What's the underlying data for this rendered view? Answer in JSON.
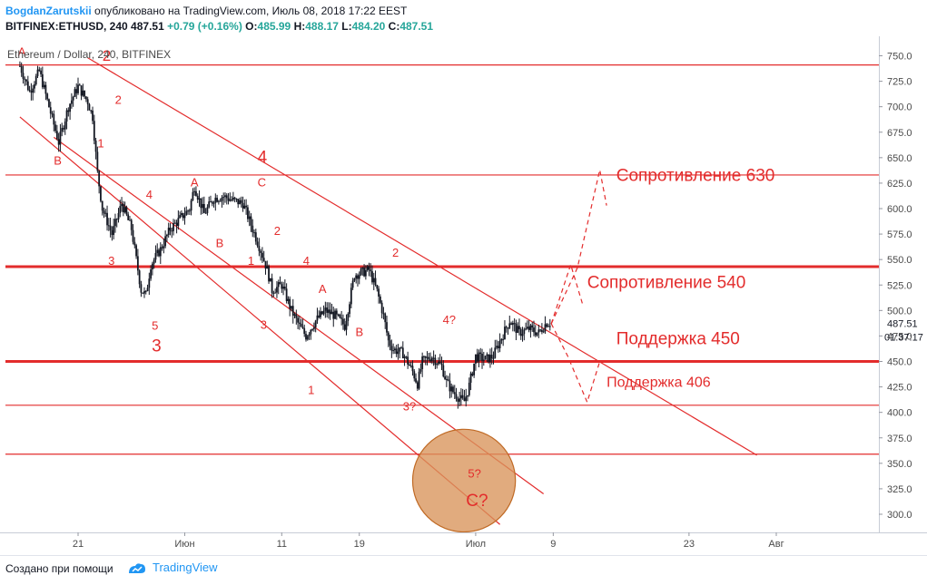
{
  "header": {
    "author": "BogdanZarutskii",
    "published": "опубликовано на TradingView.com, Июль 08, 2018 17:22 EEST",
    "symbol": "BITFINEX:ETHUSD, 240",
    "last": "487.51",
    "change": "+0.79 (+0.16%)",
    "o_label": "O:",
    "o_val": "485.99",
    "h_label": "H:",
    "h_val": "488.17",
    "l_label": "L:",
    "l_val": "484.20",
    "c_label": "C:",
    "c_val": "487.51"
  },
  "chart_data": {
    "type": "candlestick",
    "title": "Ethereum / Dollar, 240, BITFINEX",
    "y_ticks": [
      750,
      725,
      700,
      675,
      650,
      625,
      600,
      575,
      550,
      525,
      500,
      475,
      450,
      425,
      400,
      375,
      350,
      325,
      300
    ],
    "ylim": [
      285,
      760
    ],
    "x_ticks": [
      {
        "label": "21",
        "day": 21
      },
      {
        "label": "Июн",
        "day": 32
      },
      {
        "label": "11",
        "day": 42
      },
      {
        "label": "19",
        "day": 50
      },
      {
        "label": "Июл",
        "day": 62
      },
      {
        "label": "9",
        "day": 70
      },
      {
        "label": "23",
        "day": 84
      },
      {
        "label": "Авг",
        "day": 93
      }
    ],
    "price_path": [
      [
        15.0,
        740
      ],
      [
        16.0,
        715
      ],
      [
        17.0,
        735
      ],
      [
        18.0,
        700
      ],
      [
        19.0,
        665
      ],
      [
        20.0,
        700
      ],
      [
        21.0,
        720
      ],
      [
        22.0,
        705
      ],
      [
        22.5,
        690
      ],
      [
        23.0,
        635
      ],
      [
        23.5,
        600
      ],
      [
        24.5,
        575
      ],
      [
        25.5,
        605
      ],
      [
        26.5,
        580
      ],
      [
        27.0,
        550
      ],
      [
        27.5,
        520
      ],
      [
        28.0,
        515
      ],
      [
        28.5,
        545
      ],
      [
        29.5,
        560
      ],
      [
        30.5,
        580
      ],
      [
        31.5,
        590
      ],
      [
        32.5,
        600
      ],
      [
        33.0,
        622
      ],
      [
        34.0,
        595
      ],
      [
        35.0,
        610
      ],
      [
        36.0,
        612
      ],
      [
        37.0,
        608
      ],
      [
        38.0,
        605
      ],
      [
        39.0,
        580
      ],
      [
        39.8,
        560
      ],
      [
        40.5,
        540
      ],
      [
        41.0,
        520
      ],
      [
        42.0,
        525
      ],
      [
        43.0,
        500
      ],
      [
        43.8,
        485
      ],
      [
        44.5,
        475
      ],
      [
        45.5,
        490
      ],
      [
        46.5,
        500
      ],
      [
        47.5,
        495
      ],
      [
        48.5,
        485
      ],
      [
        49.5,
        535
      ],
      [
        50.5,
        538
      ],
      [
        51.0,
        540
      ],
      [
        51.8,
        520
      ],
      [
        52.5,
        495
      ],
      [
        53.0,
        470
      ],
      [
        53.5,
        462
      ],
      [
        54.5,
        458
      ],
      [
        55.5,
        440
      ],
      [
        56.0,
        428
      ],
      [
        56.5,
        450
      ],
      [
        57.5,
        455
      ],
      [
        58.5,
        445
      ],
      [
        59.0,
        430
      ],
      [
        59.5,
        422
      ],
      [
        60.2,
        415
      ],
      [
        60.8,
        410
      ],
      [
        61.3,
        425
      ],
      [
        62.0,
        455
      ],
      [
        63.0,
        452
      ],
      [
        63.8,
        455
      ],
      [
        64.5,
        470
      ],
      [
        65.5,
        490
      ],
      [
        66.5,
        478
      ],
      [
        67.5,
        482
      ],
      [
        68.5,
        478
      ],
      [
        69.3,
        488
      ],
      [
        69.8,
        487.51
      ]
    ],
    "last_price": "487.51",
    "countdown": "01:37:17",
    "levels": [
      {
        "price": 741,
        "weight": "thin"
      },
      {
        "price": 633,
        "weight": "thin"
      },
      {
        "price": 543,
        "weight": "thick"
      },
      {
        "price": 450,
        "weight": "thick"
      },
      {
        "price": 407,
        "weight": "thin"
      },
      {
        "price": 359,
        "weight": "thin"
      }
    ],
    "annotations": [
      {
        "text": "Сопротивление 630",
        "day": 76.5,
        "price": 627,
        "size": 19
      },
      {
        "text": "Сопротивление 540",
        "day": 73.5,
        "price": 522,
        "size": 19
      },
      {
        "text": "Поддержка 450",
        "day": 76.5,
        "price": 467,
        "size": 19
      },
      {
        "text": "Поддержка 406",
        "day": 75.5,
        "price": 425,
        "size": 16
      },
      {
        "text": "A",
        "day": 14.8,
        "price": 750,
        "size": 13
      },
      {
        "text": "2",
        "day": 23.5,
        "price": 745,
        "size": 17
      },
      {
        "text": "2",
        "day": 24.8,
        "price": 703,
        "size": 13
      },
      {
        "text": "1",
        "day": 23.0,
        "price": 660,
        "size": 13
      },
      {
        "text": "B",
        "day": 18.5,
        "price": 643,
        "size": 13
      },
      {
        "text": "4",
        "day": 28.0,
        "price": 610,
        "size": 13
      },
      {
        "text": "A",
        "day": 32.6,
        "price": 622,
        "size": 13
      },
      {
        "text": "4",
        "day": 39.5,
        "price": 645,
        "size": 19
      },
      {
        "text": "C",
        "day": 39.5,
        "price": 622,
        "size": 13
      },
      {
        "text": "B",
        "day": 35.2,
        "price": 562,
        "size": 13
      },
      {
        "text": "2",
        "day": 41.2,
        "price": 574,
        "size": 13
      },
      {
        "text": "1",
        "day": 38.5,
        "price": 545,
        "size": 13
      },
      {
        "text": "4",
        "day": 44.2,
        "price": 545,
        "size": 13
      },
      {
        "text": "3",
        "day": 24.1,
        "price": 545,
        "size": 13
      },
      {
        "text": "A",
        "day": 45.8,
        "price": 517,
        "size": 13
      },
      {
        "text": "5",
        "day": 28.6,
        "price": 481,
        "size": 13
      },
      {
        "text": "3",
        "day": 28.6,
        "price": 460,
        "size": 19
      },
      {
        "text": "3",
        "day": 39.8,
        "price": 482,
        "size": 13
      },
      {
        "text": "B",
        "day": 49.6,
        "price": 475,
        "size": 13
      },
      {
        "text": "2",
        "day": 53.4,
        "price": 553,
        "size": 13
      },
      {
        "text": "4?",
        "day": 58.6,
        "price": 487,
        "size": 13
      },
      {
        "text": "1",
        "day": 44.7,
        "price": 418,
        "size": 13
      },
      {
        "text": "3?",
        "day": 54.5,
        "price": 402,
        "size": 13
      },
      {
        "text": "5?",
        "day": 61.2,
        "price": 336,
        "size": 13
      },
      {
        "text": "C?",
        "day": 61.0,
        "price": 308,
        "size": 19
      }
    ],
    "channels": [
      {
        "from": [
          18.5,
          670
        ],
        "to": [
          69.0,
          320
        ]
      },
      {
        "from": [
          22.0,
          748
        ],
        "to": [
          91.0,
          358
        ]
      },
      {
        "from": [
          15.0,
          690
        ],
        "to": [
          64.5,
          290
        ]
      }
    ],
    "projection": [
      [
        69.8,
        487
      ],
      [
        72.5,
        542
      ],
      [
        74.8,
        638
      ],
      [
        75.5,
        603
      ]
    ],
    "projection_alt": [
      [
        69.8,
        487
      ],
      [
        71.8,
        545
      ],
      [
        73.0,
        507
      ]
    ],
    "projection_down": [
      [
        69.8,
        487
      ],
      [
        71.5,
        455
      ],
      [
        73.5,
        410
      ],
      [
        74.8,
        450
      ]
    ],
    "circle": {
      "day": 60.8,
      "price": 333,
      "r_days": 5.3
    }
  },
  "footer": {
    "made_with": "Создано при помощи",
    "brand": "TradingView"
  },
  "colors": {
    "red": "#e32c2c",
    "candle": "#131722",
    "circle_fill": "#d9935a",
    "circle_stroke": "#c06a25",
    "axis_text": "#4a4a4a"
  }
}
